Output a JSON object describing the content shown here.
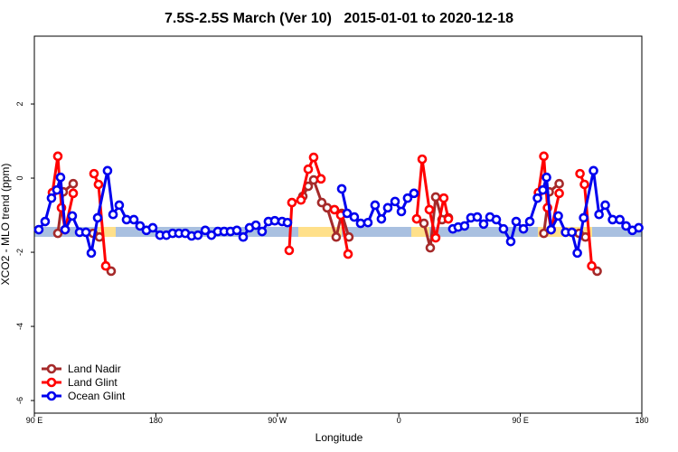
{
  "chart_data": {
    "type": "line",
    "title": "7.5S-2.5S March (Ver 10)   2015-01-01 to 2020-12-18",
    "x_label": "Longitude",
    "y_label": "XCO2 - MLO trend (ppm)",
    "xlim": [
      90,
      540
    ],
    "xticks": [
      {
        "value": 90,
        "label": "90 E"
      },
      180,
      {
        "value": 270,
        "label": "90 W"
      },
      {
        "value": 360,
        "label": "0"
      },
      {
        "value": 450,
        "label": "90 E"
      },
      {
        "value": 540,
        "label": "180"
      }
    ],
    "ylim": [
      -6.34,
      3.83
    ],
    "yticks": [
      -6,
      -4,
      -2,
      0,
      2
    ],
    "legend": "bottom-left",
    "series": [
      {
        "name": "Land Nadir",
        "color": "#a52a2a",
        "x": [
          107.4,
          111.4,
          118.8,
          null,
          133.5,
          138.2,
          null,
          146.9,
          null,
          288.9,
          292.9,
          296.9,
          302.9,
          306.9,
          313.6,
          317.7,
          323.0,
          null,
          378.6,
          383.3,
          387.3,
          392.0,
          396.7,
          null,
          467.4,
          471.4,
          478.8,
          null,
          493.5,
          498.2,
          null,
          506.9
        ],
        "values": [
          -1.49,
          -0.37,
          -0.15,
          null,
          -1.49,
          -1.59,
          null,
          -2.51,
          null,
          -0.49,
          -0.22,
          -0.05,
          -0.66,
          -0.8,
          -1.59,
          -0.95,
          -1.59,
          null,
          -1.22,
          -1.88,
          -0.51,
          -1.12,
          -1.07,
          null,
          -1.49,
          -0.37,
          -0.15,
          null,
          -1.49,
          -1.59,
          null,
          -2.51
        ]
      },
      {
        "name": "Land Glint",
        "color": "#ff0000",
        "x": [
          103.4,
          107.4,
          110.1,
          112.8,
          118.8,
          null,
          134.2,
          137.5,
          142.9,
          null,
          278.8,
          280.8,
          287.5,
          292.9,
          296.9,
          302.3,
          null,
          312.3,
          317.0,
          322.4,
          null,
          373.2,
          377.3,
          382.6,
          387.3,
          393.3,
          396.7,
          null,
          463.4,
          467.4,
          470.1,
          472.8,
          478.8,
          null,
          494.2,
          497.5,
          502.9
        ],
        "values": [
          -0.39,
          0.59,
          -0.8,
          -1.39,
          -0.41,
          null,
          0.12,
          -0.17,
          -2.37,
          null,
          -1.95,
          -0.66,
          -0.59,
          0.24,
          0.56,
          -0.02,
          null,
          -0.85,
          -1.0,
          -2.05,
          null,
          -1.1,
          0.51,
          -0.85,
          -1.61,
          -0.54,
          -1.1,
          null,
          -0.39,
          0.59,
          -0.8,
          -1.39,
          -0.41,
          null,
          0.12,
          -0.17,
          -2.37
        ]
      },
      {
        "name": "Ocean Glint",
        "color": "#0000ee",
        "x": [
          93.3,
          98.0,
          102.7,
          106.7,
          109.4,
          112.8,
          118.1,
          123.5,
          128.2,
          132.2,
          136.9,
          144.2,
          148.3,
          152.9,
          158.3,
          163.7,
          168.3,
          173.0,
          177.7,
          183.1,
          187.8,
          192.4,
          197.1,
          201.8,
          206.5,
          211.2,
          216.6,
          221.2,
          225.9,
          230.6,
          235.3,
          240.0,
          244.7,
          249.4,
          254.1,
          258.7,
          263.4,
          268.1,
          273.5,
          277.5,
          null,
          317.7,
          321.7,
          327.0,
          331.7,
          337.1,
          342.4,
          347.1,
          351.8,
          357.2,
          361.9,
          366.5,
          371.2,
          null,
          400.0,
          404.0,
          408.7,
          413.4,
          418.1,
          422.8,
          427.5,
          432.2,
          437.5,
          442.9,
          446.9,
          452.3,
          457.0,
          462.7,
          466.7,
          469.4,
          472.8,
          478.1,
          483.5,
          488.2,
          492.2,
          496.9,
          504.2,
          508.3,
          512.9,
          518.3,
          523.7,
          528.3,
          533.0,
          537.7
        ],
        "values": [
          -1.39,
          -1.17,
          -0.54,
          -0.32,
          0.02,
          -1.39,
          -1.02,
          -1.46,
          -1.46,
          -2.02,
          -1.07,
          0.2,
          -0.98,
          -0.73,
          -1.12,
          -1.12,
          -1.29,
          -1.41,
          -1.34,
          -1.54,
          -1.54,
          -1.49,
          -1.49,
          -1.49,
          -1.56,
          -1.54,
          -1.41,
          -1.54,
          -1.44,
          -1.44,
          -1.44,
          -1.41,
          -1.59,
          -1.34,
          -1.27,
          -1.44,
          -1.17,
          -1.15,
          -1.17,
          -1.2,
          null,
          -0.29,
          -0.95,
          -1.05,
          -1.22,
          -1.2,
          -0.73,
          -1.1,
          -0.8,
          -0.63,
          -0.9,
          -0.54,
          -0.41,
          null,
          -1.37,
          -1.32,
          -1.29,
          -1.07,
          -1.05,
          -1.24,
          -1.05,
          -1.12,
          -1.37,
          -1.71,
          -1.17,
          -1.37,
          -1.17,
          -0.54,
          -0.32,
          0.02,
          -1.39,
          -1.02,
          -1.46,
          -1.46,
          -2.02,
          -1.07,
          0.2,
          -0.98,
          -0.73,
          -1.12,
          -1.12,
          -1.29,
          -1.41,
          -1.34
        ]
      }
    ]
  }
}
